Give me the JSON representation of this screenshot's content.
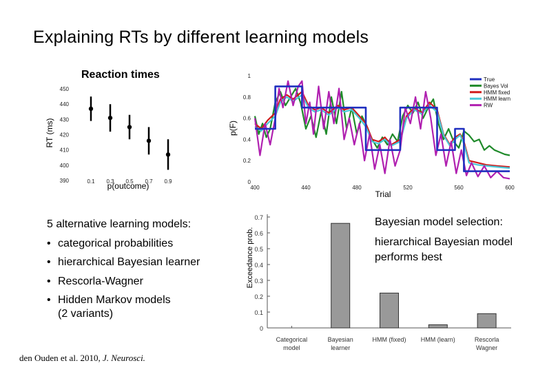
{
  "slide": {
    "title": "Explaining RTs by different learning models",
    "list_heading": "5 alternative learning models:",
    "list_items": [
      {
        "text": "categorical probabilities"
      },
      {
        "text": "hierarchical Bayesian learner"
      },
      {
        "text": "Rescorla-Wagner"
      },
      {
        "text": "Hidden Markov models",
        "sub": "(2 variants)"
      }
    ],
    "selection_heading": "Bayesian model selection:",
    "selection_text": "hierarchical Bayesian model performs best",
    "citation_authors": "den Ouden et al. 2010,",
    "citation_journal": "J. Neurosci."
  },
  "chart_data": [
    {
      "type": "scatter",
      "title": "Reaction times",
      "xlabel": "p(outcome)",
      "ylabel": "RT (ms)",
      "x": [
        0.1,
        0.3,
        0.5,
        0.7,
        0.9
      ],
      "y": [
        437,
        431,
        425,
        416,
        407
      ],
      "err": [
        8,
        9,
        8,
        9,
        10
      ],
      "xticks": [
        0.1,
        0.3,
        0.5,
        0.7,
        0.9
      ],
      "yticks": [
        390,
        400,
        410,
        420,
        430,
        440,
        450
      ],
      "xlim": [
        -0.1,
        1.0
      ],
      "ylim": [
        390,
        455
      ]
    },
    {
      "type": "line",
      "xlabel": "Trial",
      "ylabel": "p(F)",
      "xlim": [
        400,
        600
      ],
      "ylim": [
        0,
        1
      ],
      "xticks": [
        400,
        440,
        480,
        520,
        560,
        600
      ],
      "yticks": [
        0,
        0.2,
        0.4,
        0.6,
        0.8,
        1
      ],
      "legend_position": "top-right",
      "series": [
        {
          "name": "True",
          "color": "#1f2fbf",
          "x": [
            400,
            416,
            416,
            437,
            437,
            487,
            487,
            514,
            514,
            543,
            543,
            557,
            557,
            564,
            564,
            600
          ],
          "y": [
            0.5,
            0.5,
            0.9,
            0.9,
            0.7,
            0.7,
            0.3,
            0.3,
            0.7,
            0.7,
            0.3,
            0.3,
            0.5,
            0.5,
            0.1,
            0.1
          ]
        },
        {
          "name": "Bayes Vol",
          "color": "#1f8a2a",
          "x": [
            400,
            403,
            406,
            409,
            412,
            416,
            420,
            424,
            428,
            432,
            436,
            440,
            444,
            448,
            452,
            456,
            460,
            464,
            468,
            472,
            476,
            480,
            484,
            488,
            492,
            496,
            500,
            504,
            508,
            512,
            516,
            520,
            524,
            528,
            532,
            536,
            540,
            544,
            548,
            552,
            556,
            560,
            564,
            568,
            572,
            576,
            580,
            584,
            588,
            592,
            596,
            600
          ],
          "y": [
            0.62,
            0.45,
            0.55,
            0.42,
            0.5,
            0.75,
            0.85,
            0.72,
            0.8,
            0.88,
            0.74,
            0.5,
            0.62,
            0.42,
            0.66,
            0.45,
            0.8,
            0.55,
            0.85,
            0.5,
            0.7,
            0.45,
            0.62,
            0.52,
            0.4,
            0.32,
            0.42,
            0.35,
            0.45,
            0.38,
            0.62,
            0.72,
            0.65,
            0.75,
            0.6,
            0.7,
            0.78,
            0.55,
            0.4,
            0.5,
            0.38,
            0.32,
            0.48,
            0.44,
            0.38,
            0.4,
            0.3,
            0.34,
            0.3,
            0.28,
            0.26,
            0.25
          ]
        },
        {
          "name": "HMM fixed",
          "color": "#d01c1c",
          "x": [
            400,
            405,
            410,
            416,
            420,
            425,
            430,
            437,
            442,
            447,
            452,
            458,
            465,
            470,
            476,
            482,
            487,
            492,
            497,
            502,
            507,
            514,
            519,
            525,
            531,
            537,
            543,
            548,
            553,
            557,
            561,
            564,
            568,
            575,
            582,
            590,
            600
          ],
          "y": [
            0.55,
            0.5,
            0.58,
            0.65,
            0.78,
            0.82,
            0.78,
            0.85,
            0.72,
            0.68,
            0.7,
            0.65,
            0.72,
            0.68,
            0.7,
            0.62,
            0.55,
            0.4,
            0.38,
            0.42,
            0.35,
            0.4,
            0.62,
            0.7,
            0.65,
            0.75,
            0.68,
            0.45,
            0.35,
            0.42,
            0.45,
            0.38,
            0.2,
            0.18,
            0.16,
            0.15,
            0.14
          ]
        },
        {
          "name": "HMM learn",
          "color": "#4ac8d8",
          "x": [
            400,
            405,
            410,
            416,
            420,
            425,
            430,
            437,
            442,
            447,
            452,
            458,
            465,
            470,
            476,
            482,
            487,
            492,
            497,
            502,
            507,
            514,
            519,
            525,
            531,
            537,
            543,
            548,
            553,
            557,
            561,
            564,
            568,
            575,
            582,
            590,
            600
          ],
          "y": [
            0.52,
            0.48,
            0.55,
            0.62,
            0.75,
            0.8,
            0.76,
            0.82,
            0.7,
            0.66,
            0.68,
            0.63,
            0.7,
            0.66,
            0.68,
            0.6,
            0.52,
            0.38,
            0.36,
            0.4,
            0.34,
            0.38,
            0.6,
            0.68,
            0.64,
            0.72,
            0.66,
            0.44,
            0.34,
            0.4,
            0.44,
            0.36,
            0.18,
            0.16,
            0.15,
            0.14,
            0.13
          ]
        },
        {
          "name": "RW",
          "color": "#b020b0",
          "x": [
            400,
            404,
            408,
            412,
            416,
            419,
            422,
            426,
            430,
            434,
            437,
            440,
            443,
            446,
            450,
            454,
            458,
            462,
            466,
            470,
            474,
            478,
            482,
            486,
            490,
            494,
            498,
            502,
            506,
            510,
            514,
            518,
            522,
            526,
            530,
            534,
            538,
            542,
            546,
            550,
            554,
            558,
            562,
            566,
            570,
            575,
            580,
            585,
            590,
            595,
            600
          ],
          "y": [
            0.6,
            0.25,
            0.55,
            0.35,
            0.6,
            0.88,
            0.7,
            0.95,
            0.72,
            0.9,
            0.95,
            0.55,
            0.75,
            0.45,
            0.9,
            0.5,
            0.85,
            0.55,
            0.88,
            0.4,
            0.6,
            0.35,
            0.55,
            0.2,
            0.45,
            0.12,
            0.35,
            0.08,
            0.4,
            0.15,
            0.3,
            0.7,
            0.55,
            0.8,
            0.5,
            0.85,
            0.6,
            0.25,
            0.45,
            0.15,
            0.38,
            0.08,
            0.3,
            0.06,
            0.18,
            0.05,
            0.15,
            0.04,
            0.1,
            0.04,
            0.03
          ]
        }
      ]
    },
    {
      "type": "bar",
      "ylabel": "Exceedance prob.",
      "categories": [
        "Categorical model",
        "Bayesian learner",
        "HMM (fixed)",
        "HMM (learn)",
        "Rescorla Wagner"
      ],
      "values": [
        0.0,
        0.66,
        0.22,
        0.02,
        0.09
      ],
      "yticks": [
        0,
        0.1,
        0.2,
        0.3,
        0.4,
        0.5,
        0.6,
        0.7
      ],
      "ylim": [
        0,
        0.7
      ],
      "bar_color": "#999999"
    }
  ]
}
